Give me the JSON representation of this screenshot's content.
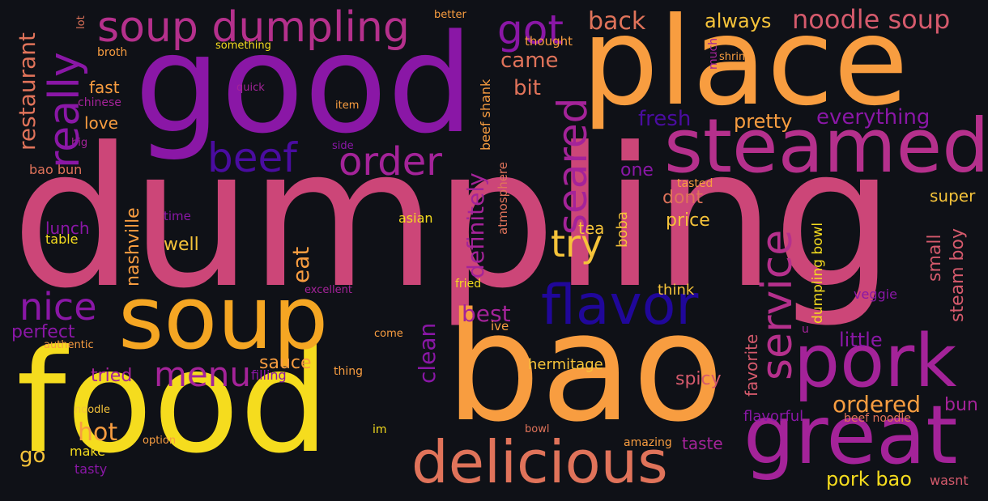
{
  "colors": {
    "background": "#0f1117",
    "yellow": "#f5dc1e",
    "orange": "#f89d40",
    "salmon": "#e0735a",
    "pink": "#cc4678",
    "magenta": "#a42399",
    "purple": "#8a17a6",
    "indigo": "#4a0ca0",
    "deep_blue": "#20079a"
  },
  "words": {
    "dumpling": "dumpling",
    "good": "good",
    "place": "place",
    "food": "food",
    "bao": "bao",
    "soup": "soup",
    "great": "great",
    "steamed": "steamed",
    "pork": "pork",
    "delicious": "delicious",
    "flavor": "flavor",
    "soup_dumpling": "soup dumpling",
    "beef": "beef",
    "order": "order",
    "really": "really",
    "got": "got",
    "seared": "seared",
    "service": "service",
    "try": "try",
    "nice": "nice",
    "menu": "menu",
    "noodle_soup": "noodle soup",
    "back": "back",
    "always": "always",
    "came": "came",
    "bit": "bit",
    "restaurant": "restaurant",
    "definitely": "definitely",
    "beef_shank": "beef shank",
    "fresh": "fresh",
    "pretty": "pretty",
    "everything": "everything",
    "ordered": "ordered",
    "clean": "clean",
    "eat": "eat",
    "best": "best",
    "one": "one",
    "dont": "dont",
    "price": "price",
    "super": "super",
    "small": "small",
    "steam_boy": "steam boy",
    "tea": "tea",
    "boba": "boba",
    "hermitage": "hermitage",
    "spicy": "spicy",
    "favorite": "favorite",
    "little": "little",
    "hot": "hot",
    "go": "go",
    "pork_bao": "pork bao",
    "taste": "taste",
    "bun": "bun",
    "sauce": "sauce",
    "tried": "tried",
    "perfect": "perfect",
    "love": "love",
    "fast": "fast",
    "nashville": "nashville",
    "lunch": "lunch",
    "well": "well",
    "bao_bun": "bao bun",
    "table": "table",
    "asian": "asian",
    "think": "think",
    "veggie": "veggie",
    "dumpling_bowl": "dumpling bowl",
    "flavorful": "flavorful",
    "beef_noodle": "beef noodle",
    "wasnt": "wasnt",
    "make": "make",
    "tasty": "tasty",
    "option": "option",
    "noodle": "noodle",
    "authentic": "authentic",
    "im": "im",
    "bowl": "bowl",
    "amazing": "amazing",
    "filling": "filling",
    "thing": "thing",
    "come": "come",
    "ive": "ive",
    "fried": "fried",
    "excellent": "excellent",
    "time": "time",
    "atmosphere": "atmosphere",
    "tasted": "tasted",
    "side": "side",
    "item": "item",
    "quick": "quick",
    "chinese": "chinese",
    "big": "big",
    "broth": "broth",
    "something": "something",
    "lot": "lot",
    "better": "better",
    "thought": "thought",
    "much": "much",
    "shrimp": "shrimp",
    "u": "u"
  }
}
